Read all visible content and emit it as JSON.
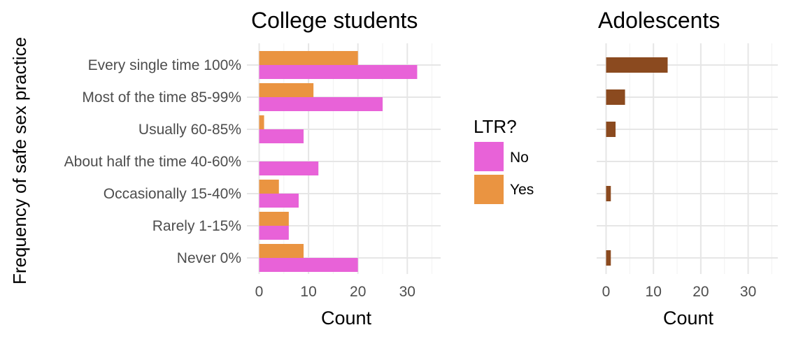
{
  "chart_data": [
    {
      "type": "bar",
      "orientation": "horizontal",
      "title": "College students",
      "xlabel": "Count",
      "ylabel": "Frequency of safe sex practice",
      "categories": [
        "Every single time 100%",
        "Most of the time 85-99%",
        "Usually 60-85%",
        "About half the time 40-60%",
        "Occasionally 15-40%",
        "Rarely 1-15%",
        "Never 0%"
      ],
      "series": [
        {
          "name": "No",
          "color": "#e862d8",
          "values": [
            32,
            25,
            9,
            12,
            8,
            6,
            20
          ]
        },
        {
          "name": "Yes",
          "color": "#ea9441",
          "values": [
            20,
            11,
            1,
            0,
            4,
            6,
            9
          ]
        }
      ],
      "xlim": [
        0,
        36
      ],
      "xticks": [
        0,
        10,
        20,
        30
      ],
      "grid": true
    },
    {
      "type": "bar",
      "orientation": "horizontal",
      "title": "Adolescents",
      "xlabel": "Count",
      "categories": [
        "Every single time 100%",
        "Most of the time 85-99%",
        "Usually 60-85%",
        "About half the time 40-60%",
        "Occasionally 15-40%",
        "Rarely 1-15%",
        "Never 0%"
      ],
      "series": [
        {
          "color": "#8b4a1f",
          "values": [
            13,
            4,
            2,
            0,
            1,
            0,
            1
          ]
        }
      ],
      "xlim": [
        0,
        36
      ],
      "xticks": [
        0,
        10,
        20,
        30
      ],
      "grid": true
    }
  ],
  "legend": {
    "title": "LTR?",
    "items": [
      {
        "label": "No",
        "color": "#e862d8"
      },
      {
        "label": "Yes",
        "color": "#ea9441"
      }
    ]
  }
}
